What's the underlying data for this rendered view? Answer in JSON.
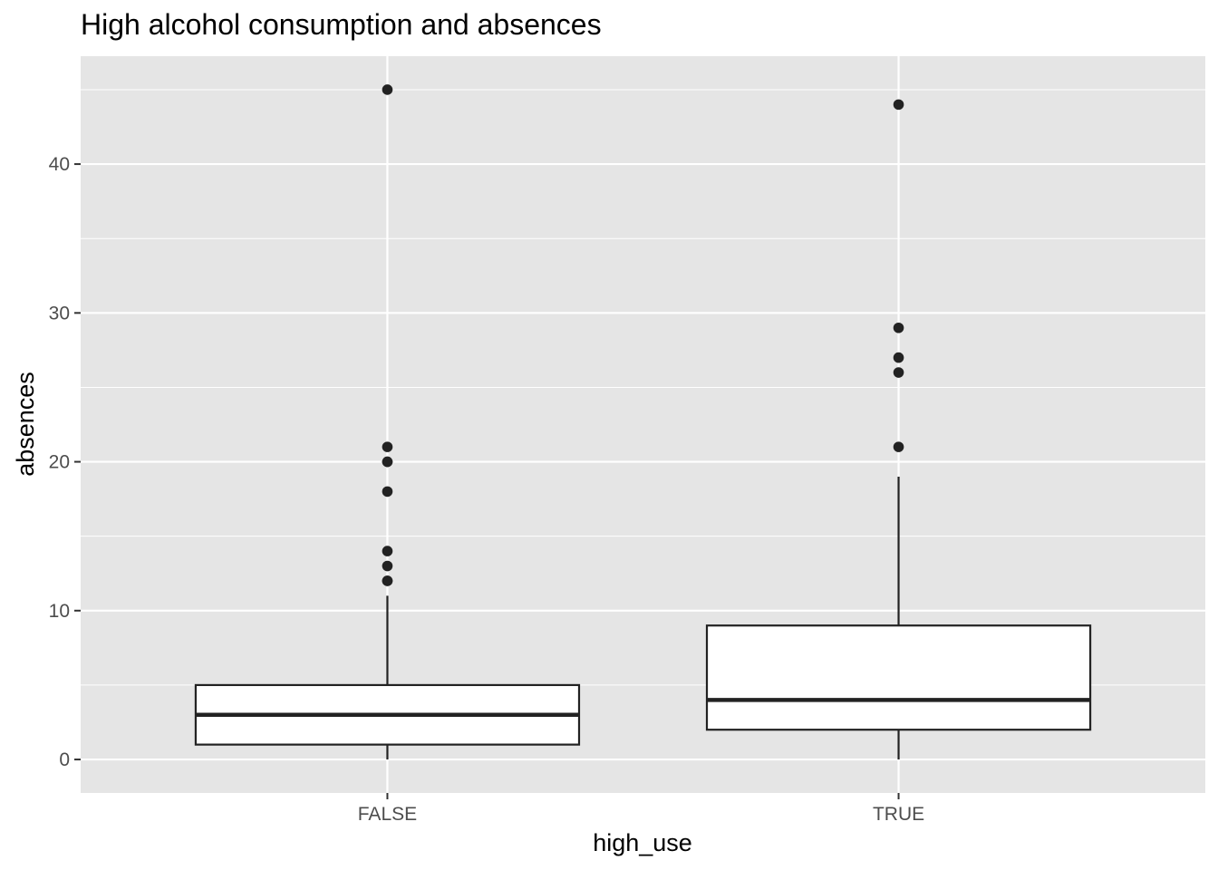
{
  "chart_data": {
    "type": "boxplot",
    "title": "High alcohol consumption and absences",
    "xlabel": "high_use",
    "ylabel": "absences",
    "categories": [
      "FALSE",
      "TRUE"
    ],
    "ylim": [
      -2.25,
      47.25
    ],
    "y_ticks": [
      0,
      10,
      20,
      30,
      40
    ],
    "grid": true,
    "background": "#e5e5e5",
    "gridline_color": "#ffffff",
    "box_fill": "#ffffff",
    "line_color": "#222222",
    "tick_label_color": "#4d4d4d",
    "boxes": [
      {
        "category": "FALSE",
        "whisker_low": 0,
        "q1": 1,
        "median": 3,
        "q3": 5,
        "whisker_high": 11,
        "outliers": [
          12,
          12,
          13,
          14,
          18,
          20,
          20,
          21,
          45
        ]
      },
      {
        "category": "TRUE",
        "whisker_low": 0,
        "q1": 2,
        "median": 4,
        "q3": 9,
        "whisker_high": 19,
        "outliers": [
          21,
          26,
          27,
          29,
          44
        ]
      }
    ]
  }
}
